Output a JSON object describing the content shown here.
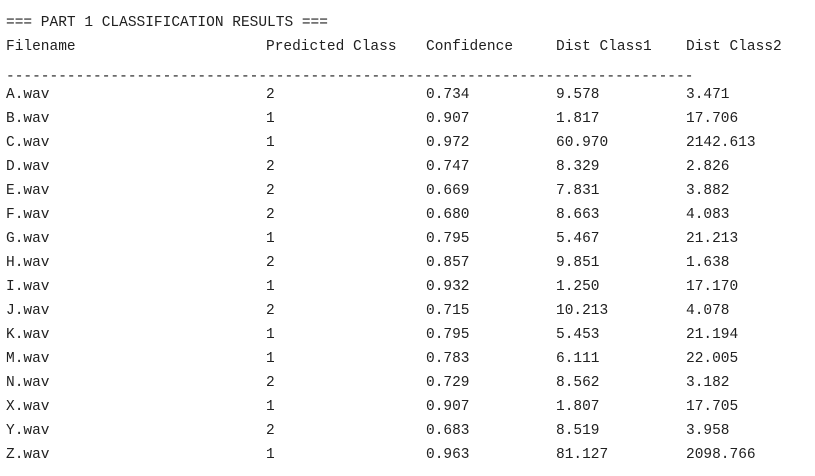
{
  "console": {
    "title": "=== PART 1 CLASSIFICATION RESULTS ===",
    "columns": {
      "filename": "Filename",
      "predicted_class": "Predicted Class",
      "confidence": "Confidence",
      "dist_class1": "Dist Class1",
      "dist_class2": "Dist Class2"
    },
    "separator": "-------------------------------------------------------------------------------",
    "rows": [
      {
        "file": "A.wav",
        "pred": "2",
        "conf": "0.734",
        "d1": "9.578",
        "d2": "3.471"
      },
      {
        "file": "B.wav",
        "pred": "1",
        "conf": "0.907",
        "d1": "1.817",
        "d2": "17.706"
      },
      {
        "file": "C.wav",
        "pred": "1",
        "conf": "0.972",
        "d1": "60.970",
        "d2": "2142.613"
      },
      {
        "file": "D.wav",
        "pred": "2",
        "conf": "0.747",
        "d1": "8.329",
        "d2": "2.826"
      },
      {
        "file": "E.wav",
        "pred": "2",
        "conf": "0.669",
        "d1": "7.831",
        "d2": "3.882"
      },
      {
        "file": "F.wav",
        "pred": "2",
        "conf": "0.680",
        "d1": "8.663",
        "d2": "4.083"
      },
      {
        "file": "G.wav",
        "pred": "1",
        "conf": "0.795",
        "d1": "5.467",
        "d2": "21.213"
      },
      {
        "file": "H.wav",
        "pred": "2",
        "conf": "0.857",
        "d1": "9.851",
        "d2": "1.638"
      },
      {
        "file": "I.wav",
        "pred": "1",
        "conf": "0.932",
        "d1": "1.250",
        "d2": "17.170"
      },
      {
        "file": "J.wav",
        "pred": "2",
        "conf": "0.715",
        "d1": "10.213",
        "d2": "4.078"
      },
      {
        "file": "K.wav",
        "pred": "1",
        "conf": "0.795",
        "d1": "5.453",
        "d2": "21.194"
      },
      {
        "file": "M.wav",
        "pred": "1",
        "conf": "0.783",
        "d1": "6.111",
        "d2": "22.005"
      },
      {
        "file": "N.wav",
        "pred": "2",
        "conf": "0.729",
        "d1": "8.562",
        "d2": "3.182"
      },
      {
        "file": "X.wav",
        "pred": "1",
        "conf": "0.907",
        "d1": "1.807",
        "d2": "17.705"
      },
      {
        "file": "Y.wav",
        "pred": "2",
        "conf": "0.683",
        "d1": "8.519",
        "d2": "3.958"
      },
      {
        "file": "Z.wav",
        "pred": "1",
        "conf": "0.963",
        "d1": "81.127",
        "d2": "2098.766"
      }
    ]
  }
}
